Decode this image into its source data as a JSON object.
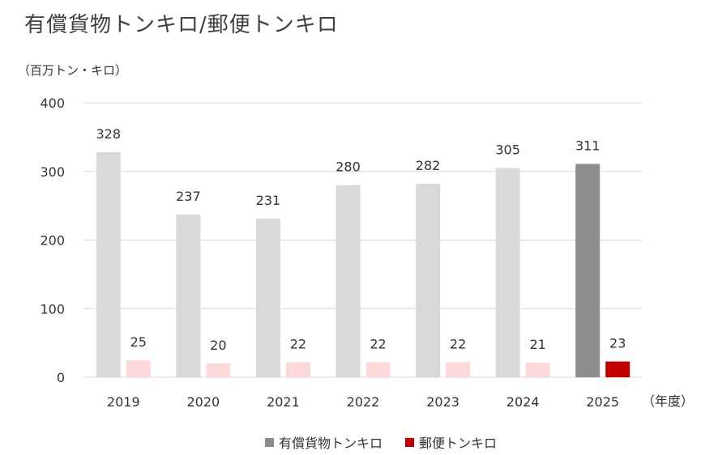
{
  "title": "有償貨物トンキロ/郵便トンキロ",
  "colors": {
    "cargo_past": "#d9d9d9",
    "cargo_current": "#8c8c8c",
    "mail_past": "#fdd9d9",
    "mail_current": "#c00000",
    "grid": "#d9d9d9",
    "legend_cargo": "#8c8c8c",
    "legend_mail": "#c00000"
  },
  "chart_data": {
    "type": "bar",
    "title": "有償貨物トンキロ/郵便トンキロ",
    "ylabel": "（百万トン・キロ）",
    "xlabel": "（年度）",
    "ylim": [
      0,
      400
    ],
    "yticks": [
      "0",
      "100",
      "200",
      "300",
      "400"
    ],
    "categories": [
      "2019",
      "2020",
      "2021",
      "2022",
      "2023",
      "2024",
      "2025"
    ],
    "series": [
      {
        "name": "有償貨物トンキロ",
        "values": [
          328,
          237,
          231,
          280,
          282,
          305,
          311
        ]
      },
      {
        "name": "郵便トンキロ",
        "values": [
          25,
          20,
          22,
          22,
          22,
          21,
          23
        ]
      }
    ],
    "highlight_category": "2025",
    "grid": true,
    "legend_position": "bottom"
  }
}
